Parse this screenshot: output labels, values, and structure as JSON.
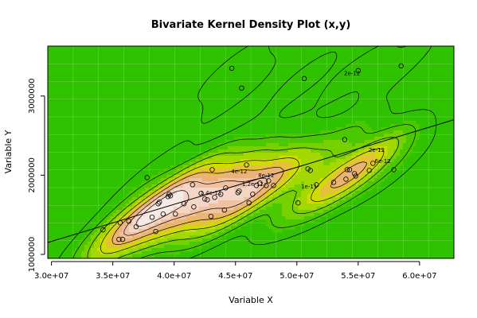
{
  "chart_data": {
    "type": "scatter",
    "title": "Bivariate Kernel Density Plot (x,y)",
    "xlabel": "Variable X",
    "ylabel": "Variable Y",
    "xlim": [
      29700000,
      62800000
    ],
    "ylim": [
      950000,
      3630000
    ],
    "x_ticks": [
      30000000,
      35000000,
      40000000,
      45000000,
      50000000,
      55000000,
      60000000
    ],
    "x_tick_labels": [
      "3.0e+07",
      "3.5e+07",
      "4.0e+07",
      "4.5e+07",
      "5.0e+07",
      "5.5e+07",
      "6.0e+07"
    ],
    "y_ticks": [
      1000000,
      2000000,
      3000000
    ],
    "y_tick_labels": [
      "1000000",
      "2000000",
      "3000000"
    ],
    "grid": true,
    "colors": {
      "background": "#2ec200",
      "grid": "#6ed64a",
      "density_fill": [
        "#2ec200",
        "#4ac900",
        "#77d100",
        "#a3d900",
        "#cfdc00",
        "#e5c03a",
        "#ecb377",
        "#f0c2a2",
        "#f3d6c6",
        "#f5ebe6"
      ],
      "contour_line": "#000000",
      "points": "#000000"
    },
    "contour_labels": [
      {
        "text": "2e-12",
        "x": 54500000,
        "y": 3290000
      },
      {
        "text": "2e-12",
        "x": 56500000,
        "y": 2320000
      },
      {
        "text": "6e-12",
        "x": 57000000,
        "y": 2180000
      },
      {
        "text": "4e-12",
        "x": 45300000,
        "y": 2050000
      },
      {
        "text": "8e-12",
        "x": 47500000,
        "y": 2000000
      },
      {
        "text": "1.2e-11",
        "x": 46400000,
        "y": 1890000
      },
      {
        "text": "1e-11",
        "x": 51000000,
        "y": 1860000
      },
      {
        "text": "1.4e-11",
        "x": 43000000,
        "y": 1780000
      }
    ],
    "regression_line": {
      "x": [
        29700000,
        62800000
      ],
      "y": [
        1150000,
        2700000
      ]
    },
    "points": [
      {
        "x": 34200000,
        "y": 1310000
      },
      {
        "x": 35500000,
        "y": 1190000
      },
      {
        "x": 35800000,
        "y": 1190000
      },
      {
        "x": 35600000,
        "y": 1400000
      },
      {
        "x": 36300000,
        "y": 1420000
      },
      {
        "x": 36900000,
        "y": 1350000
      },
      {
        "x": 37800000,
        "y": 1970000
      },
      {
        "x": 38200000,
        "y": 1470000
      },
      {
        "x": 38500000,
        "y": 1290000
      },
      {
        "x": 38700000,
        "y": 1640000
      },
      {
        "x": 38800000,
        "y": 1660000
      },
      {
        "x": 39100000,
        "y": 1510000
      },
      {
        "x": 39500000,
        "y": 1730000
      },
      {
        "x": 39600000,
        "y": 1760000
      },
      {
        "x": 39700000,
        "y": 1740000
      },
      {
        "x": 40100000,
        "y": 1510000
      },
      {
        "x": 40800000,
        "y": 1640000
      },
      {
        "x": 41500000,
        "y": 1880000
      },
      {
        "x": 41600000,
        "y": 1600000
      },
      {
        "x": 42200000,
        "y": 1770000
      },
      {
        "x": 42500000,
        "y": 1700000
      },
      {
        "x": 42700000,
        "y": 1690000
      },
      {
        "x": 43000000,
        "y": 1480000
      },
      {
        "x": 43100000,
        "y": 2070000
      },
      {
        "x": 43300000,
        "y": 1720000
      },
      {
        "x": 43800000,
        "y": 1760000
      },
      {
        "x": 44100000,
        "y": 1560000
      },
      {
        "x": 44200000,
        "y": 1840000
      },
      {
        "x": 44700000,
        "y": 3350000
      },
      {
        "x": 45200000,
        "y": 1780000
      },
      {
        "x": 45300000,
        "y": 1800000
      },
      {
        "x": 45500000,
        "y": 3100000
      },
      {
        "x": 45900000,
        "y": 2130000
      },
      {
        "x": 46100000,
        "y": 1650000
      },
      {
        "x": 46400000,
        "y": 1760000
      },
      {
        "x": 46700000,
        "y": 1870000
      },
      {
        "x": 47000000,
        "y": 1900000
      },
      {
        "x": 47500000,
        "y": 1870000
      },
      {
        "x": 47700000,
        "y": 1930000
      },
      {
        "x": 48100000,
        "y": 1870000
      },
      {
        "x": 50100000,
        "y": 1650000
      },
      {
        "x": 50600000,
        "y": 3220000
      },
      {
        "x": 50900000,
        "y": 2080000
      },
      {
        "x": 51100000,
        "y": 2060000
      },
      {
        "x": 51600000,
        "y": 1880000
      },
      {
        "x": 53000000,
        "y": 1910000
      },
      {
        "x": 53900000,
        "y": 2450000
      },
      {
        "x": 54000000,
        "y": 1950000
      },
      {
        "x": 54100000,
        "y": 2070000
      },
      {
        "x": 54300000,
        "y": 2070000
      },
      {
        "x": 54700000,
        "y": 2020000
      },
      {
        "x": 54800000,
        "y": 1990000
      },
      {
        "x": 55000000,
        "y": 3320000
      },
      {
        "x": 55900000,
        "y": 2060000
      },
      {
        "x": 56200000,
        "y": 2150000
      },
      {
        "x": 57900000,
        "y": 2070000
      },
      {
        "x": 58500000,
        "y": 3380000
      }
    ]
  }
}
